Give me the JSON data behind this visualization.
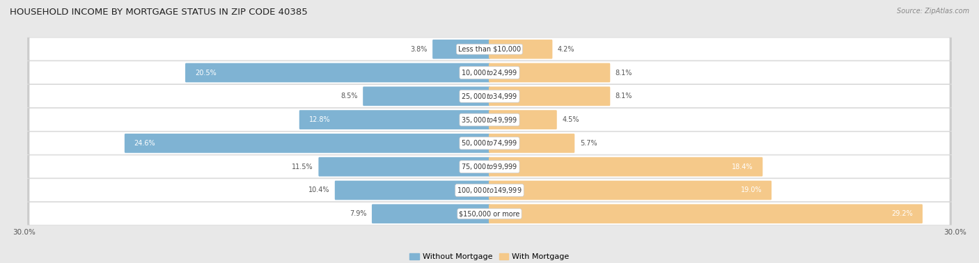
{
  "title": "HOUSEHOLD INCOME BY MORTGAGE STATUS IN ZIP CODE 40385",
  "source": "Source: ZipAtlas.com",
  "categories": [
    "Less than $10,000",
    "$10,000 to $24,999",
    "$25,000 to $34,999",
    "$35,000 to $49,999",
    "$50,000 to $74,999",
    "$75,000 to $99,999",
    "$100,000 to $149,999",
    "$150,000 or more"
  ],
  "without_mortgage": [
    3.8,
    20.5,
    8.5,
    12.8,
    24.6,
    11.5,
    10.4,
    7.9
  ],
  "with_mortgage": [
    4.2,
    8.1,
    8.1,
    4.5,
    5.7,
    18.4,
    19.0,
    29.2
  ],
  "blue_color": "#7fb3d3",
  "orange_color": "#f5c98a",
  "row_light_color": "#f5f5f5",
  "row_dark_color": "#e8e8e8",
  "bg_color": "#e8e8e8",
  "xlim": 30.0,
  "legend_label_without": "Without Mortgage",
  "legend_label_with": "With Mortgage",
  "axis_label_left": "30.0%",
  "axis_label_right": "30.0%",
  "label_inside_threshold_wo": 12.0,
  "label_inside_threshold_wm": 12.0
}
